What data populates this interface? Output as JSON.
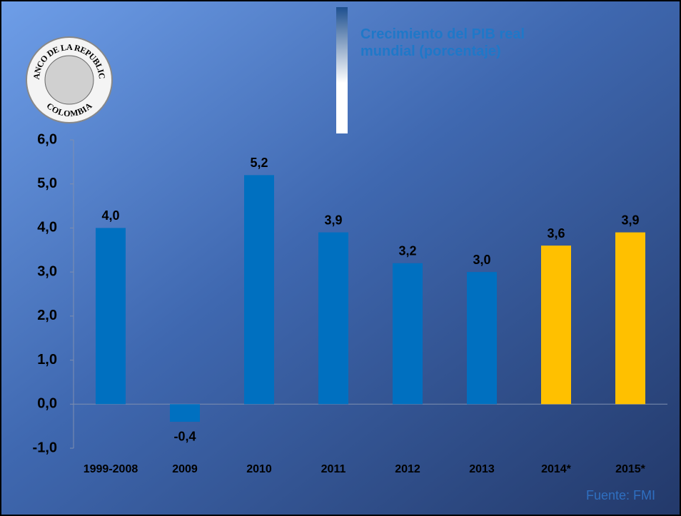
{
  "chart_data": {
    "type": "bar",
    "title": "Crecimiento del PIB real mundial (porcentaje)",
    "logo": {
      "top": "BANCO DE LA REPUBLICA",
      "bottom": "COLOMBIA"
    },
    "categories": [
      "1999-2008",
      "2009",
      "2010",
      "2011",
      "2012",
      "2013",
      "2014*",
      "2015*"
    ],
    "values": [
      4.0,
      -0.4,
      5.2,
      3.9,
      3.2,
      3.0,
      3.6,
      3.9
    ],
    "value_labels": [
      "4,0",
      "-0,4",
      "5,2",
      "3,9",
      "3,2",
      "3,0",
      "3,6",
      "3,9"
    ],
    "colors": [
      "#0070c0",
      "#0070c0",
      "#0070c0",
      "#0070c0",
      "#0070c0",
      "#0070c0",
      "#ffc000",
      "#ffc000"
    ],
    "ylim": [
      -1,
      6
    ],
    "yticks": [
      {
        "value": -1,
        "label": "-1,0"
      },
      {
        "value": 0,
        "label": "0,0"
      },
      {
        "value": 1,
        "label": "1,0"
      },
      {
        "value": 2,
        "label": "2,0"
      },
      {
        "value": 3,
        "label": "3,0"
      },
      {
        "value": 4,
        "label": "4,0"
      },
      {
        "value": 5,
        "label": "5,0"
      },
      {
        "value": 6,
        "label": "6,0"
      }
    ],
    "grid": false,
    "source": "Fuente: FMI"
  }
}
